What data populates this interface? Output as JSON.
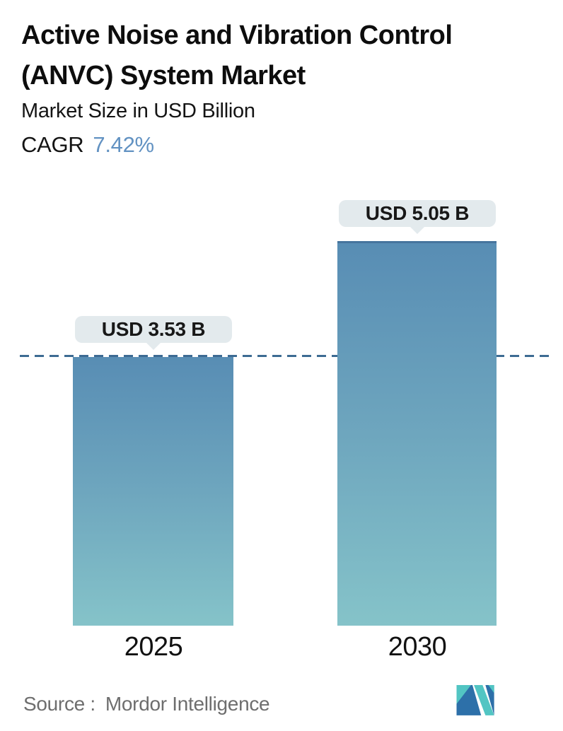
{
  "header": {
    "title": "Active Noise and Vibration Control (ANVC) System Market",
    "subtitle": "Market Size in USD Billion",
    "cagr_label": "CAGR",
    "cagr_value": "7.42%"
  },
  "chart_data": {
    "type": "bar",
    "categories": [
      "2025",
      "2030"
    ],
    "values": [
      3.53,
      5.05
    ],
    "value_labels": [
      "USD 3.53 B",
      "USD 5.05 B"
    ],
    "unit": "USD Billion",
    "title": "Active Noise and Vibration Control (ANVC) System Market",
    "ylabel": "Market Size in USD Billion",
    "ylim": [
      0,
      5.05
    ],
    "reference_line": {
      "value": 3.53,
      "style": "dashed",
      "color": "#3d6b93"
    },
    "legend": "none",
    "grid": false,
    "bar_gradient_top": "#588db4",
    "bar_gradient_bottom": "#85c3c9",
    "label_pill_bg": "#e3eaed"
  },
  "footer": {
    "source_label": "Source :",
    "source_value": "Mordor Intelligence",
    "logo_icon": "mordor-intelligence-logo",
    "logo_teal": "#52c5c3",
    "logo_blue": "#2d70a9"
  },
  "colors": {
    "title": "#0d0d0d",
    "cagr_accent": "#6292c2",
    "source_text": "#6e6e6e",
    "background": "#ffffff"
  }
}
